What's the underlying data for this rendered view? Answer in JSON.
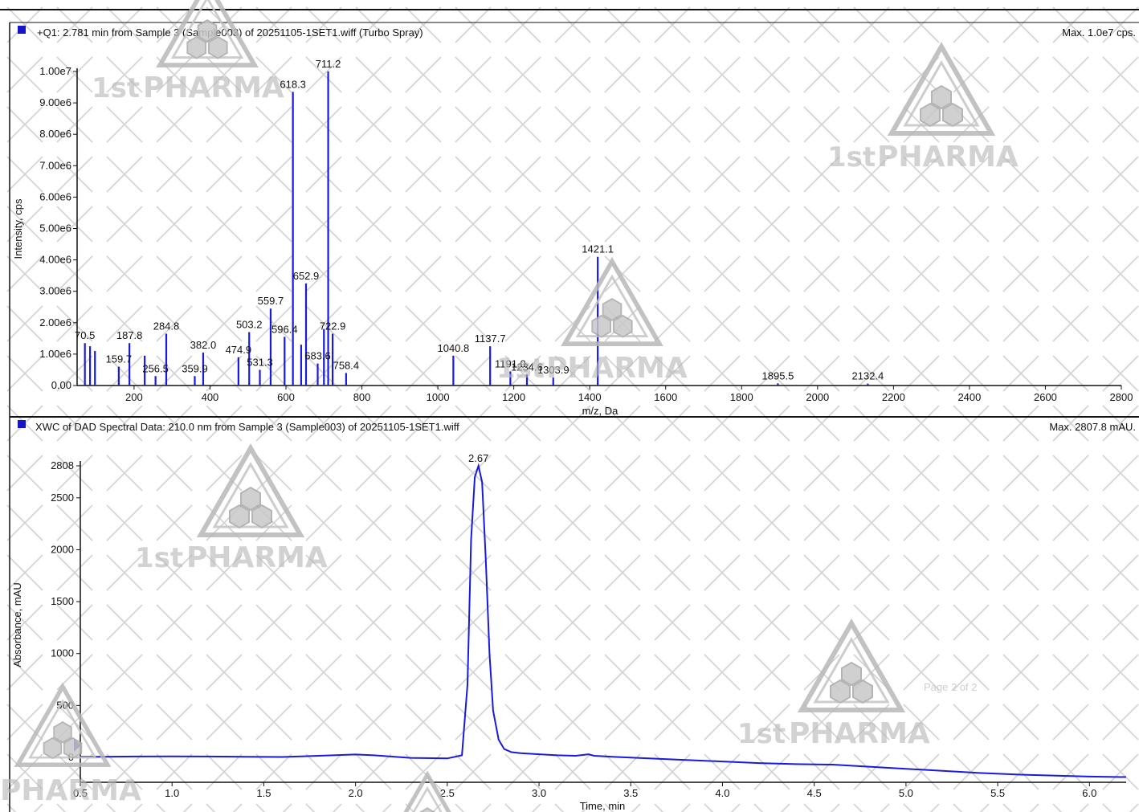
{
  "watermark": {
    "brand": "1stPHARMA",
    "text_large": "PHARMA",
    "prefix": "1st",
    "cut_text": "PHARMA",
    "page_text": "Page 2 of 2"
  },
  "colors": {
    "trace": "#1a1adc",
    "legend": "#1414c8",
    "axis": "#111111",
    "watermark": "#b8b8b8"
  },
  "top": {
    "header": "+Q1: 2.781 min from Sample 3 (Sample003) of 20251105-1SET1.wiff (Turbo Spray)",
    "max_label": "Max. 1.0e7 cps.",
    "xlabel": "m/z, Da",
    "ylabel": "Intensity, cps"
  },
  "bottom": {
    "header": "XWC of DAD Spectral Data: 210.0 nm from Sample 3 (Sample003) of 20251105-1SET1.wiff",
    "max_label": "Max. 2807.8 mAU.",
    "xlabel": "Time, min",
    "ylabel": "Absorbance, mAU"
  },
  "chart_data": [
    {
      "type": "bar",
      "title": "+Q1: 2.781 min from Sample 3 (Sample003) of 20251105-1SET1.wiff (Turbo Spray)",
      "xlabel": "m/z, Da",
      "ylabel": "Intensity, cps",
      "xlim": [
        50,
        2800
      ],
      "ylim": [
        0,
        10000000
      ],
      "x_ticks": [
        200,
        400,
        600,
        800,
        1000,
        1200,
        1400,
        1600,
        1800,
        2000,
        2200,
        2400,
        2600,
        2800
      ],
      "y_ticks": [
        {
          "value": 0,
          "label": "0.00"
        },
        {
          "value": 1000000,
          "label": "1.00e6"
        },
        {
          "value": 2000000,
          "label": "2.00e6"
        },
        {
          "value": 3000000,
          "label": "3.00e6"
        },
        {
          "value": 4000000,
          "label": "4.00e6"
        },
        {
          "value": 5000000,
          "label": "5.00e6"
        },
        {
          "value": 6000000,
          "label": "6.00e6"
        },
        {
          "value": 7000000,
          "label": "7.00e6"
        },
        {
          "value": 8000000,
          "label": "8.00e6"
        },
        {
          "value": 9000000,
          "label": "9.00e6"
        },
        {
          "value": 10000000,
          "label": "1.00e7"
        }
      ],
      "peaks": [
        {
          "mz": 70.5,
          "intensity": 1350000,
          "label": "70.5"
        },
        {
          "mz": 84,
          "intensity": 1250000,
          "label": ""
        },
        {
          "mz": 97,
          "intensity": 1100000,
          "label": ""
        },
        {
          "mz": 159.7,
          "intensity": 600000,
          "label": "159.7"
        },
        {
          "mz": 187.8,
          "intensity": 1350000,
          "label": "187.8"
        },
        {
          "mz": 228,
          "intensity": 950000,
          "label": ""
        },
        {
          "mz": 256.5,
          "intensity": 300000,
          "label": "256.5"
        },
        {
          "mz": 284.8,
          "intensity": 1650000,
          "label": "284.8"
        },
        {
          "mz": 359.9,
          "intensity": 300000,
          "label": "359.9"
        },
        {
          "mz": 382.0,
          "intensity": 1050000,
          "label": "382.0"
        },
        {
          "mz": 474.9,
          "intensity": 900000,
          "label": "474.9"
        },
        {
          "mz": 503.2,
          "intensity": 1700000,
          "label": "503.2"
        },
        {
          "mz": 531.3,
          "intensity": 500000,
          "label": "531.3"
        },
        {
          "mz": 559.7,
          "intensity": 2450000,
          "label": "559.7"
        },
        {
          "mz": 596.4,
          "intensity": 1550000,
          "label": "596.4"
        },
        {
          "mz": 618.3,
          "intensity": 9350000,
          "label": "618.3"
        },
        {
          "mz": 640,
          "intensity": 1300000,
          "label": ""
        },
        {
          "mz": 652.9,
          "intensity": 3250000,
          "label": "652.9"
        },
        {
          "mz": 683.6,
          "intensity": 700000,
          "label": "683.6"
        },
        {
          "mz": 700,
          "intensity": 1800000,
          "label": ""
        },
        {
          "mz": 711.2,
          "intensity": 10000000,
          "label": "711.2"
        },
        {
          "mz": 722.9,
          "intensity": 1650000,
          "label": "722.9"
        },
        {
          "mz": 758.4,
          "intensity": 400000,
          "label": "758.4"
        },
        {
          "mz": 1040.8,
          "intensity": 950000,
          "label": "1040.8"
        },
        {
          "mz": 1137.7,
          "intensity": 1250000,
          "label": "1137.7"
        },
        {
          "mz": 1191.0,
          "intensity": 450000,
          "label": "1191.0"
        },
        {
          "mz": 1234.6,
          "intensity": 350000,
          "label": "1234.6"
        },
        {
          "mz": 1303.9,
          "intensity": 250000,
          "label": "1303.9"
        },
        {
          "mz": 1421.1,
          "intensity": 4100000,
          "label": "1421.1"
        },
        {
          "mz": 1895.5,
          "intensity": 70000,
          "label": "1895.5"
        },
        {
          "mz": 2132.4,
          "intensity": 60000,
          "label": "2132.4"
        }
      ]
    },
    {
      "type": "line",
      "title": "XWC of DAD Spectral Data: 210.0 nm from Sample 3 (Sample003) of 20251105-1SET1.wiff",
      "xlabel": "Time, min",
      "ylabel": "Absorbance, mAU",
      "xlim": [
        0.5,
        6.2
      ],
      "ylim": [
        -240,
        2808
      ],
      "x_ticks": [
        0.5,
        1.0,
        1.5,
        2.0,
        2.5,
        3.0,
        3.5,
        4.0,
        4.5,
        5.0,
        5.5,
        6.0
      ],
      "y_ticks": [
        0,
        500,
        1000,
        1500,
        2000,
        2500,
        2808
      ],
      "peak_label": "2.67",
      "x": [
        0.5,
        0.6,
        0.8,
        1.0,
        1.2,
        1.4,
        1.6,
        1.8,
        2.0,
        2.1,
        2.3,
        2.5,
        2.58,
        2.61,
        2.63,
        2.65,
        2.67,
        2.69,
        2.71,
        2.73,
        2.75,
        2.78,
        2.81,
        2.85,
        2.9,
        3.0,
        3.1,
        3.2,
        3.27,
        3.3,
        3.4,
        3.6,
        3.8,
        4.0,
        4.2,
        4.4,
        4.6,
        4.8,
        5.0,
        5.2,
        5.4,
        5.6,
        5.8,
        6.0,
        6.2
      ],
      "y": [
        5,
        5,
        8,
        10,
        8,
        6,
        4,
        15,
        28,
        20,
        -5,
        -10,
        20,
        700,
        2100,
        2700,
        2808,
        2650,
        1900,
        1000,
        450,
        170,
        80,
        50,
        40,
        30,
        20,
        15,
        30,
        15,
        5,
        -10,
        -25,
        -40,
        -55,
        -65,
        -70,
        -90,
        -110,
        -130,
        -150,
        -165,
        -175,
        -185,
        -190
      ]
    }
  ]
}
